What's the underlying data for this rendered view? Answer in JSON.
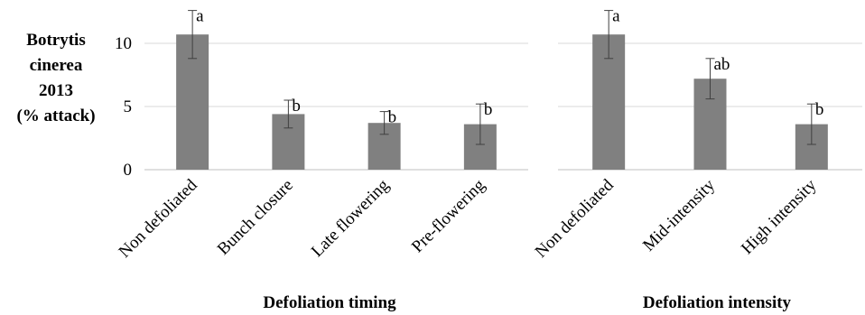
{
  "ylabel_lines": [
    "Botrytis",
    "cinerea",
    "2013",
    "(% attack)"
  ],
  "colors": {
    "bar": "#808080",
    "grid": "#d9d9d9",
    "error": "#404040",
    "axis": "#bfbfbf"
  },
  "chart_data": [
    {
      "type": "bar",
      "xlabel": "Defoliation timing",
      "ylim": [
        0,
        12
      ],
      "yticks": [
        0,
        5,
        10
      ],
      "grid": true,
      "categories": [
        "Non defoliated",
        "Bunch closure",
        "Late flowering",
        "Pre-flowering"
      ],
      "values": [
        10.7,
        4.4,
        3.7,
        3.6
      ],
      "errors": [
        1.9,
        1.1,
        0.9,
        1.6
      ],
      "letters": [
        "a",
        "b",
        "b",
        "b"
      ]
    },
    {
      "type": "bar",
      "xlabel": "Defoliation intensity",
      "ylim": [
        0,
        12
      ],
      "yticks": [
        0,
        5,
        10
      ],
      "grid": true,
      "categories": [
        "Non defoliated",
        "Mid-intensity",
        "High intensity"
      ],
      "values": [
        10.7,
        7.2,
        3.6
      ],
      "errors": [
        1.9,
        1.6,
        1.6
      ],
      "letters": [
        "a",
        "ab",
        "b"
      ]
    }
  ]
}
